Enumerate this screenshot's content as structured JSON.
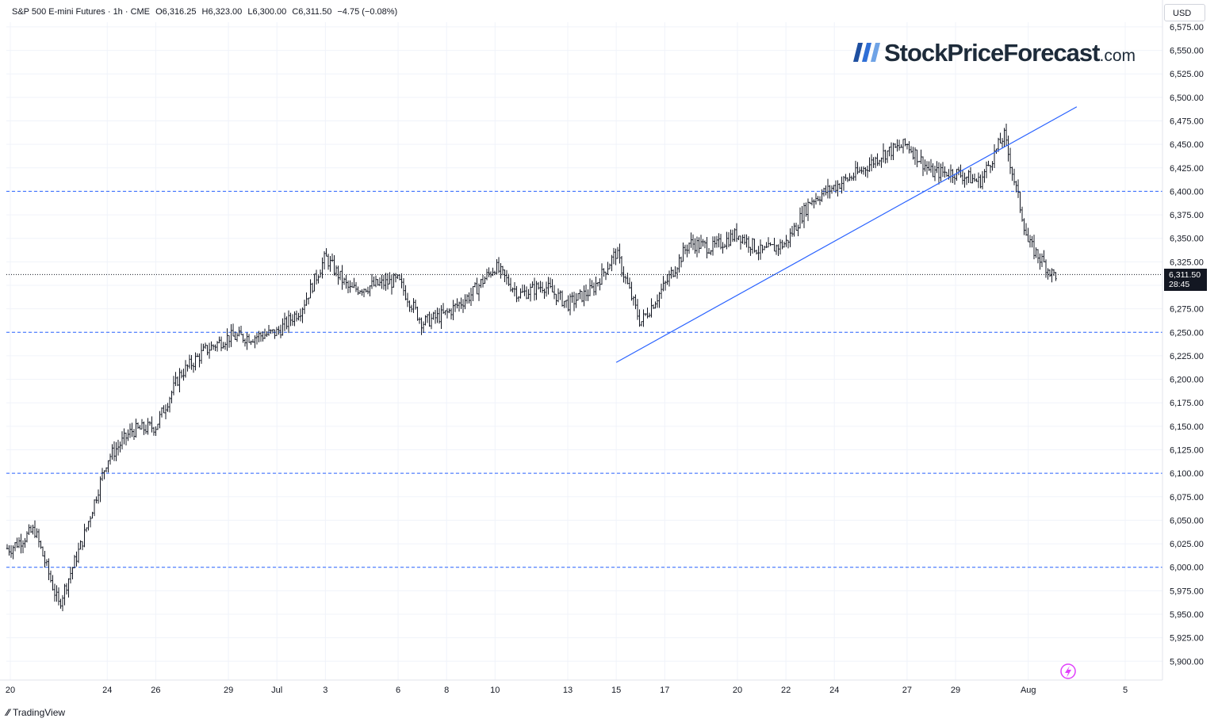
{
  "header": {
    "symbol": "S&P 500 E-mini Futures · 1h · CME",
    "open": "O6,316.25",
    "high": "H6,323.00",
    "low": "L6,300.00",
    "close": "C6,311.50",
    "change": "−4.75 (−0.08%)"
  },
  "logo": {
    "name": "StockPriceForecast",
    "suffix": ".com"
  },
  "currency": "USD",
  "last_price": {
    "value": "6,311.50",
    "countdown": "28:45"
  },
  "footer": {
    "brand": "TradingView"
  },
  "colors": {
    "line": "#2962ff",
    "candle": "#131722",
    "grid": "#f0f3fa",
    "axis_text": "#131722",
    "levels": "#2962ff"
  },
  "chart_data": {
    "type": "ohlc",
    "title": "",
    "interval": "1h",
    "ylim": [
      5880,
      6580
    ],
    "y_ticks": [
      "5,900.00",
      "5,925.00",
      "5,950.00",
      "5,975.00",
      "6,000.00",
      "6,025.00",
      "6,050.00",
      "6,075.00",
      "6,100.00",
      "6,125.00",
      "6,150.00",
      "6,175.00",
      "6,200.00",
      "6,225.00",
      "6,250.00",
      "6,275.00",
      "6,300.00",
      "6,325.00",
      "6,350.00",
      "6,375.00",
      "6,400.00",
      "6,425.00",
      "6,450.00",
      "6,475.00",
      "6,500.00",
      "6,525.00",
      "6,550.00",
      "6,575.00"
    ],
    "x_ticks": [
      "20",
      "24",
      "26",
      "29",
      "Jul",
      "3",
      "6",
      "8",
      "10",
      "13",
      "15",
      "17",
      "20",
      "22",
      "24",
      "27",
      "29",
      "Aug",
      "5"
    ],
    "dates": [
      "2025-06-20",
      "2025-06-24",
      "2025-06-26",
      "2025-06-29",
      "2025-07-01",
      "2025-07-03",
      "2025-07-06",
      "2025-07-08",
      "2025-07-10",
      "2025-07-13",
      "2025-07-15",
      "2025-07-17",
      "2025-07-20",
      "2025-07-22",
      "2025-07-24",
      "2025-07-27",
      "2025-07-29",
      "2025-08-01",
      "2025-08-05"
    ],
    "horizontal_levels": [
      6000,
      6100,
      6250,
      6400
    ],
    "trendline": {
      "from": {
        "date": "2025-07-15",
        "y": 6218
      },
      "to": {
        "date": "2025-08-03",
        "y": 6490
      }
    },
    "last_price": 6311.5,
    "path": [
      [
        "2025-06-20",
        6020
      ],
      [
        "2025-06-21",
        6040
      ],
      [
        "2025-06-22",
        5960
      ],
      [
        "2025-06-23",
        6030
      ],
      [
        "2025-06-24",
        6115
      ],
      [
        "2025-06-25",
        6145
      ],
      [
        "2025-06-26",
        6150
      ],
      [
        "2025-06-27",
        6205
      ],
      [
        "2025-06-28",
        6230
      ],
      [
        "2025-06-29",
        6245
      ],
      [
        "2025-06-30",
        6245
      ],
      [
        "2025-07-01",
        6250
      ],
      [
        "2025-07-02",
        6275
      ],
      [
        "2025-07-03",
        6330
      ],
      [
        "2025-07-04",
        6295
      ],
      [
        "2025-07-05",
        6300
      ],
      [
        "2025-07-06",
        6305
      ],
      [
        "2025-07-07",
        6260
      ],
      [
        "2025-07-08",
        6270
      ],
      [
        "2025-07-09",
        6290
      ],
      [
        "2025-07-10",
        6320
      ],
      [
        "2025-07-11",
        6290
      ],
      [
        "2025-07-12",
        6300
      ],
      [
        "2025-07-13",
        6280
      ],
      [
        "2025-07-14",
        6295
      ],
      [
        "2025-07-15",
        6335
      ],
      [
        "2025-07-16",
        6260
      ],
      [
        "2025-07-17",
        6300
      ],
      [
        "2025-07-18",
        6345
      ],
      [
        "2025-07-19",
        6340
      ],
      [
        "2025-07-20",
        6355
      ],
      [
        "2025-07-21",
        6335
      ],
      [
        "2025-07-22",
        6345
      ],
      [
        "2025-07-23",
        6390
      ],
      [
        "2025-07-24",
        6405
      ],
      [
        "2025-07-25",
        6420
      ],
      [
        "2025-07-26",
        6440
      ],
      [
        "2025-07-27",
        6450
      ],
      [
        "2025-07-28",
        6420
      ],
      [
        "2025-07-29",
        6420
      ],
      [
        "2025-07-30",
        6410
      ],
      [
        "2025-07-31",
        6460
      ],
      [
        "2025-08-01",
        6345
      ],
      [
        "2025-08-01",
        6311.5
      ]
    ]
  }
}
